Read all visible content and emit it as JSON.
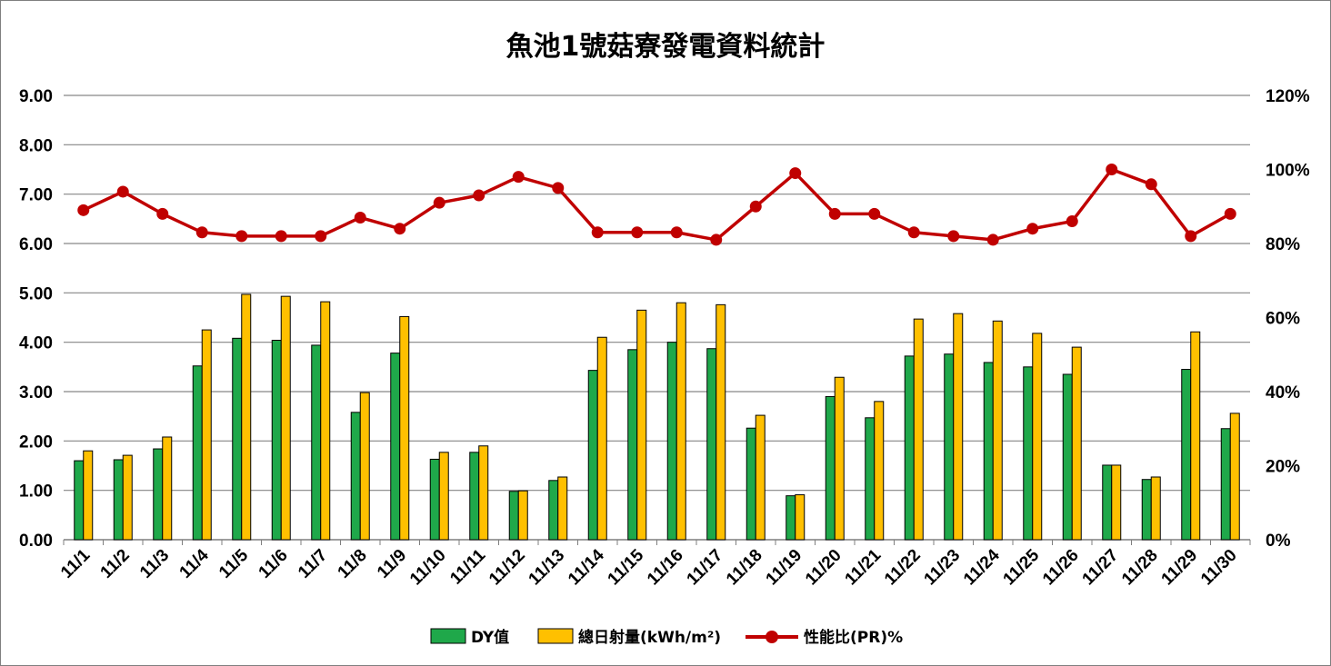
{
  "chart_data": {
    "type": "bar",
    "title": "魚池1號菇寮發電資料統計",
    "categories": [
      "11/1",
      "11/2",
      "11/3",
      "11/4",
      "11/5",
      "11/6",
      "11/7",
      "11/8",
      "11/9",
      "11/10",
      "11/11",
      "11/12",
      "11/13",
      "11/14",
      "11/15",
      "11/16",
      "11/17",
      "11/18",
      "11/19",
      "11/20",
      "11/21",
      "11/22",
      "11/23",
      "11/24",
      "11/25",
      "11/26",
      "11/27",
      "11/28",
      "11/29",
      "11/30"
    ],
    "series": [
      {
        "name": "DY值",
        "type": "bar",
        "axis": "left",
        "color": "#1fa84a",
        "values": [
          1.6,
          1.62,
          1.84,
          3.52,
          4.08,
          4.04,
          3.94,
          2.58,
          3.78,
          1.63,
          1.77,
          0.98,
          1.2,
          3.43,
          3.85,
          4.0,
          3.87,
          2.26,
          0.89,
          2.9,
          2.47,
          3.72,
          3.76,
          3.59,
          3.5,
          3.35,
          1.51,
          1.22,
          3.45,
          2.25
        ]
      },
      {
        "name": "總日射量(kWh/m²)",
        "type": "bar",
        "axis": "left",
        "color": "#ffc000",
        "values": [
          1.8,
          1.71,
          2.08,
          4.25,
          4.97,
          4.93,
          4.82,
          2.98,
          4.52,
          1.77,
          1.9,
          0.99,
          1.27,
          4.1,
          4.65,
          4.8,
          4.76,
          2.52,
          0.91,
          3.29,
          2.8,
          4.47,
          4.58,
          4.43,
          4.18,
          3.9,
          1.51,
          1.27,
          4.21,
          2.56
        ]
      },
      {
        "name": "性能比(PR)%",
        "type": "line",
        "axis": "right",
        "color": "#c00000",
        "values": [
          89,
          94,
          88,
          83,
          82,
          82,
          82,
          87,
          84,
          91,
          93,
          98,
          95,
          83,
          83,
          83,
          81,
          90,
          99,
          88,
          88,
          83,
          82,
          81,
          84,
          86,
          100,
          96,
          82,
          88
        ]
      }
    ],
    "yaxis_left": {
      "min": 0,
      "max": 9,
      "step": 1,
      "ticks": [
        "0.00",
        "1.00",
        "2.00",
        "3.00",
        "4.00",
        "5.00",
        "6.00",
        "7.00",
        "8.00",
        "9.00"
      ]
    },
    "yaxis_right": {
      "min": 0,
      "max": 120,
      "step": 20,
      "ticks": [
        "0%",
        "20%",
        "40%",
        "60%",
        "80%",
        "100%",
        "120%"
      ]
    },
    "grid": true,
    "legend_position": "bottom"
  }
}
